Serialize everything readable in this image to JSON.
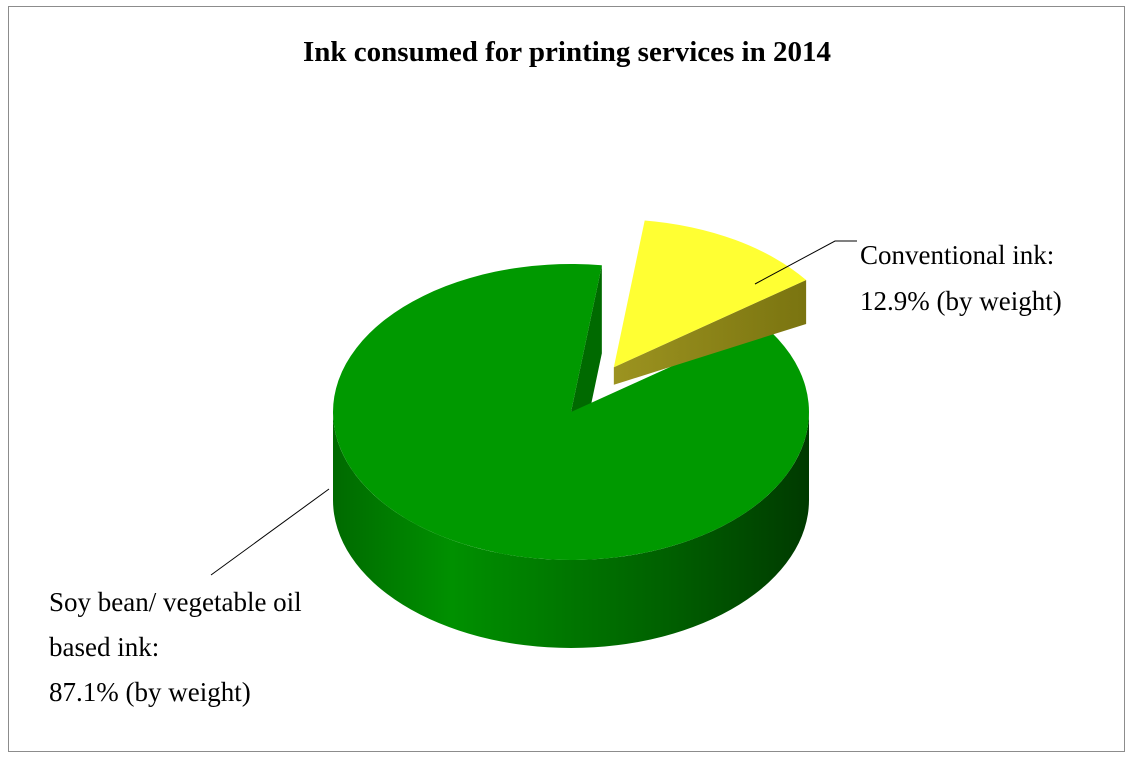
{
  "chart_data": {
    "type": "pie",
    "title": "Ink consumed for printing services in 2014",
    "three_d": true,
    "slices": [
      {
        "name": "Soy bean/ vegetable oil based ink",
        "value": 87.1,
        "color": "#009900",
        "label_lines": [
          "Soy bean/ vegetable oil",
          "based ink:",
          "87.1% (by weight)"
        ]
      },
      {
        "name": "Conventional ink",
        "value": 12.9,
        "color": "#ffff33",
        "exploded": true,
        "label_lines": [
          "Conventional ink:",
          "12.9% (by weight)"
        ]
      }
    ]
  }
}
